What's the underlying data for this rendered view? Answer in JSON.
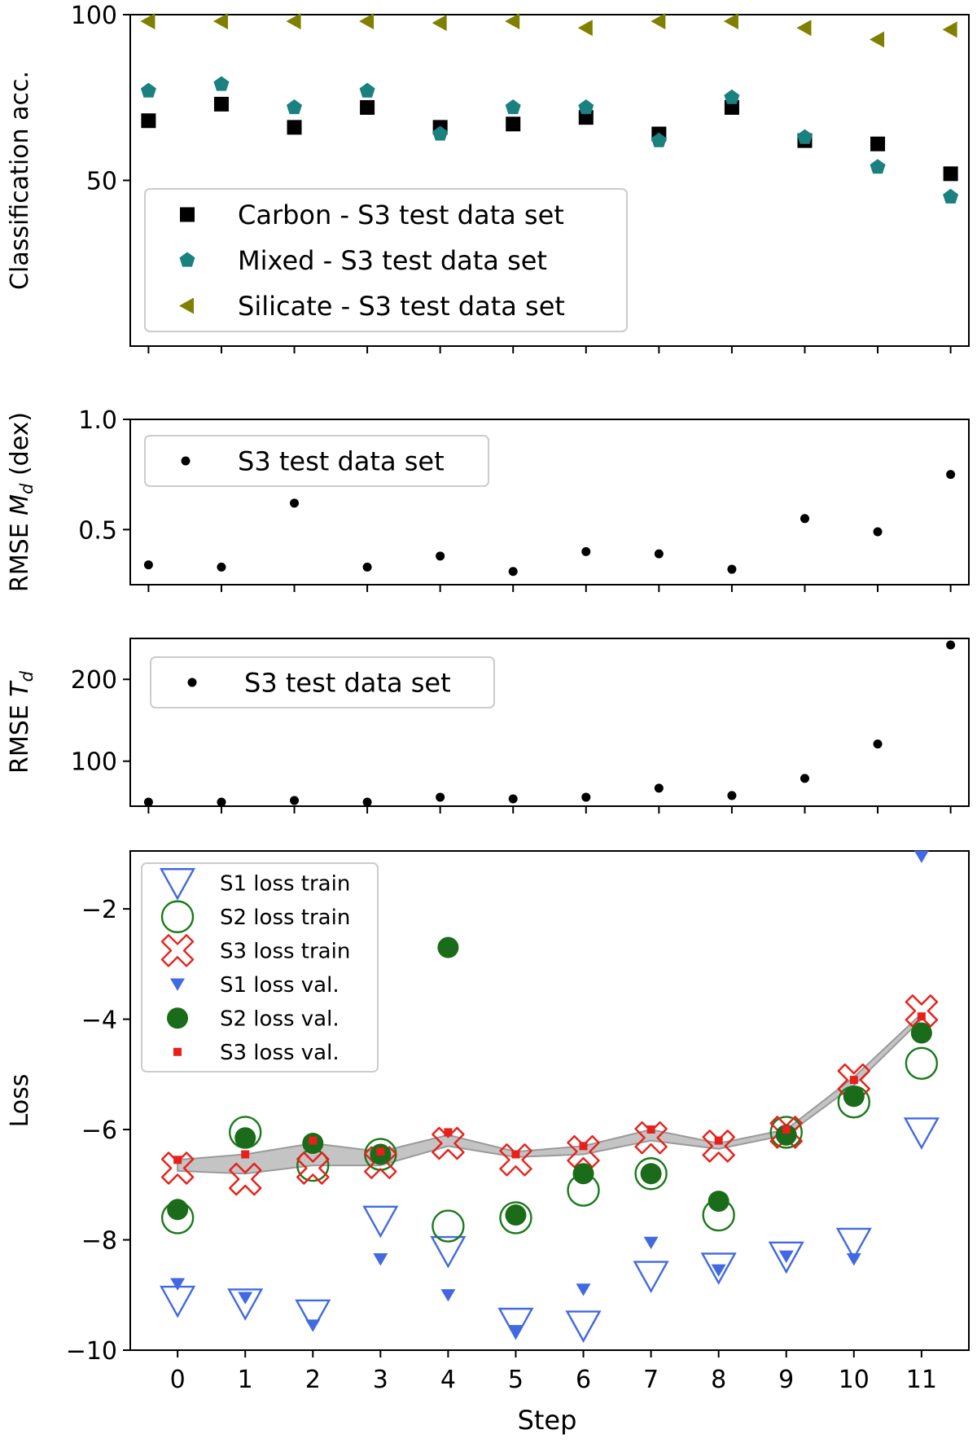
{
  "figure": {
    "xlabel": "Step"
  },
  "chart_data": [
    {
      "id": "acc",
      "type": "scatter",
      "ylabel": "Classification acc.",
      "ylim": [
        0,
        100
      ],
      "yticks": [
        50,
        100
      ],
      "xlim": [
        -0.25,
        11.25
      ],
      "legend": "bottom-left",
      "series": [
        {
          "name": "Carbon - S3 test data set",
          "marker": "square",
          "color": "#000000",
          "x": [
            0,
            1,
            2,
            3,
            4,
            5,
            6,
            7,
            8,
            9,
            10,
            11
          ],
          "y": [
            68,
            73,
            66,
            72,
            66,
            67,
            69,
            64,
            72,
            62,
            61,
            52
          ]
        },
        {
          "name": "Mixed - S3 test data set",
          "marker": "pentagon",
          "color": "#1a8080",
          "x": [
            0,
            1,
            2,
            3,
            4,
            5,
            6,
            7,
            8,
            9,
            10,
            11
          ],
          "y": [
            77,
            79,
            72,
            77,
            64,
            72,
            72,
            62,
            75,
            63,
            54,
            45
          ]
        },
        {
          "name": "Silicate - S3 test data set",
          "marker": "triangle-left",
          "color": "#7f7f00",
          "x": [
            0,
            1,
            2,
            3,
            4,
            5,
            6,
            7,
            8,
            9,
            10,
            11
          ],
          "y": [
            98,
            98,
            98,
            98,
            97.5,
            98,
            96,
            98,
            98,
            96,
            92.5,
            95.5
          ]
        }
      ]
    },
    {
      "id": "md",
      "type": "scatter",
      "ylabel_main": "RMSE ",
      "ylabel_var": "M",
      "ylabel_sub": "d",
      "ylabel_unit": " (dex)",
      "ylim": [
        0.25,
        1.0
      ],
      "yticks": [
        0.5,
        1.0
      ],
      "ytick_labels": [
        "0.5",
        "1.0"
      ],
      "xlim": [
        -0.25,
        11.25
      ],
      "legend": "top-left",
      "series": [
        {
          "name": "S3 test data set",
          "marker": "dot",
          "color": "#000000",
          "x": [
            0,
            1,
            2,
            3,
            4,
            5,
            6,
            7,
            8,
            9,
            10,
            11
          ],
          "y": [
            0.34,
            0.33,
            0.62,
            0.33,
            0.38,
            0.31,
            0.4,
            0.39,
            0.32,
            0.55,
            0.49,
            0.75
          ]
        }
      ]
    },
    {
      "id": "td",
      "type": "scatter",
      "ylabel_main": "RMSE ",
      "ylabel_var": "T",
      "ylabel_sub": "d",
      "ylim": [
        45,
        250
      ],
      "yticks": [
        100,
        200
      ],
      "xlim": [
        -0.25,
        11.25
      ],
      "legend": "top-left",
      "series": [
        {
          "name": "S3 test data set",
          "marker": "dot",
          "color": "#000000",
          "x": [
            0,
            1,
            2,
            3,
            4,
            5,
            6,
            7,
            8,
            9,
            10,
            11
          ],
          "y": [
            50,
            50,
            52,
            50,
            56,
            54,
            56,
            67,
            58,
            79,
            121,
            242
          ]
        }
      ]
    },
    {
      "id": "loss",
      "type": "scatter",
      "ylabel": "Loss",
      "ylim": [
        -10,
        -0.95
      ],
      "yticks": [
        -10,
        -8,
        -6,
        -4,
        -2
      ],
      "ytick_labels": [
        "−10",
        "−8",
        "−6",
        "−4",
        "−2"
      ],
      "xlim": [
        -0.7,
        11.7
      ],
      "xticks": [
        0,
        1,
        2,
        3,
        4,
        5,
        6,
        7,
        8,
        9,
        10,
        11
      ],
      "legend": "top-left",
      "band": {
        "x": [
          0,
          1,
          2,
          3,
          4,
          5,
          6,
          7,
          8,
          9,
          10,
          11
        ],
        "lower": [
          -6.75,
          -6.8,
          -6.65,
          -6.65,
          -6.3,
          -6.5,
          -6.45,
          -6.2,
          -6.35,
          -6.1,
          -5.2,
          -4.0
        ],
        "upper": [
          -6.55,
          -6.45,
          -6.25,
          -6.4,
          -6.1,
          -6.4,
          -6.3,
          -6.0,
          -6.25,
          -6.0,
          -5.05,
          -3.9
        ],
        "color": "#b0b0b0"
      },
      "series": [
        {
          "name": "S1 loss train",
          "marker": "triangle-down-open",
          "color": "#4169e1",
          "x": [
            0,
            1,
            2,
            3,
            4,
            5,
            6,
            7,
            8,
            9,
            10,
            11
          ],
          "y": [
            -9.1,
            -9.15,
            -9.35,
            -7.65,
            -8.2,
            -9.5,
            -9.55,
            -8.65,
            -8.5,
            -8.3,
            -8.05,
            -6.05
          ]
        },
        {
          "name": "S2 loss train",
          "marker": "circle-open",
          "color": "#1a7a1a",
          "x": [
            0,
            1,
            2,
            3,
            4,
            5,
            6,
            7,
            8,
            9,
            10,
            11
          ],
          "y": [
            -7.6,
            -6.05,
            -6.65,
            -6.45,
            -7.75,
            -7.6,
            -7.1,
            -6.8,
            -7.55,
            -6.05,
            -5.5,
            -4.8
          ]
        },
        {
          "name": "S3 loss train",
          "marker": "x-open",
          "color": "#e8201a",
          "x": [
            0,
            1,
            2,
            3,
            4,
            5,
            6,
            7,
            8,
            9,
            10,
            11
          ],
          "y": [
            -6.7,
            -6.9,
            -6.7,
            -6.6,
            -6.25,
            -6.55,
            -6.4,
            -6.15,
            -6.3,
            -6.05,
            -5.1,
            -3.85
          ]
        },
        {
          "name": "S1 loss val.",
          "marker": "triangle-down",
          "color": "#4169e1",
          "x": [
            0,
            1,
            2,
            3,
            4,
            5,
            6,
            7,
            8,
            9,
            10,
            11
          ],
          "y": [
            -8.8,
            -9.05,
            -9.55,
            -8.35,
            -9.0,
            -9.65,
            -8.9,
            -8.05,
            -8.55,
            -8.3,
            -8.35,
            -1.05
          ]
        },
        {
          "name": "S2 loss val.",
          "marker": "circle",
          "color": "#1a6b1a",
          "x": [
            0,
            1,
            2,
            3,
            4,
            5,
            6,
            7,
            8,
            9,
            10,
            11
          ],
          "y": [
            -7.45,
            -6.15,
            -6.25,
            -6.45,
            -2.7,
            -7.55,
            -6.8,
            -6.8,
            -7.3,
            -6.1,
            -5.4,
            -4.25
          ]
        },
        {
          "name": "S3 loss val.",
          "marker": "square-small",
          "color": "#e8201a",
          "x": [
            0,
            1,
            2,
            3,
            4,
            5,
            6,
            7,
            8,
            9,
            10,
            11
          ],
          "y": [
            -6.55,
            -6.45,
            -6.2,
            -6.4,
            -6.05,
            -6.45,
            -6.3,
            -6.0,
            -6.2,
            -6.0,
            -5.1,
            -3.95
          ]
        }
      ]
    }
  ]
}
